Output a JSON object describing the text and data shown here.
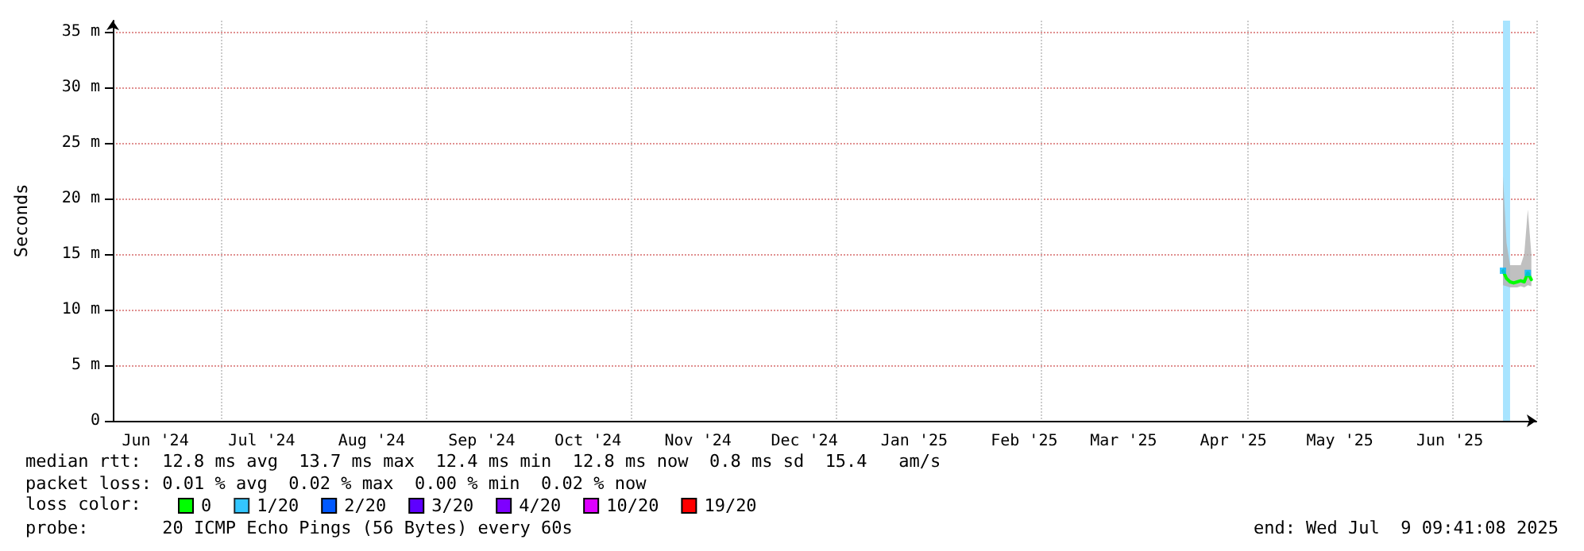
{
  "chart_data": {
    "type": "line",
    "ylabel": "Seconds",
    "legend_title": "loss color:",
    "x": [
      "2025-06-30",
      "2025-07-01",
      "2025-07-02",
      "2025-07-03",
      "2025-07-04",
      "2025-07-05",
      "2025-07-06",
      "2025-07-07",
      "2025-07-08"
    ],
    "series": [
      {
        "name": "0",
        "color": "#00ff00",
        "values": [
          13.5,
          12.8,
          12.5,
          12.4,
          12.5,
          12.6,
          12.5,
          13.3,
          12.7
        ],
        "lower": [
          12.2,
          12.1,
          12,
          12,
          12,
          12.1,
          12,
          12.2,
          12.1
        ],
        "upper": [
          22,
          16,
          14,
          14,
          14,
          14,
          15,
          19,
          15
        ]
      },
      {
        "name": "1/20",
        "type": "scatter",
        "marker": "square",
        "color": "#00b8ff",
        "values": [
          13.5,
          null,
          null,
          null,
          null,
          null,
          null,
          13.3,
          null
        ]
      },
      {
        "name": "2/20",
        "color": "#0059ff",
        "values": [
          null,
          null,
          null,
          null,
          null,
          null,
          null,
          null,
          null
        ]
      },
      {
        "name": "3/20",
        "color": "#5e00ff",
        "values": [
          null,
          null,
          null,
          null,
          null,
          null,
          null,
          null,
          null
        ]
      },
      {
        "name": "4/20",
        "color": "#7e00ff",
        "values": [
          null,
          null,
          null,
          null,
          null,
          null,
          null,
          null,
          null
        ]
      },
      {
        "name": "10/20",
        "color": "#dd00ff",
        "values": [
          null,
          null,
          null,
          null,
          null,
          null,
          null,
          null,
          null
        ]
      },
      {
        "name": "19/20",
        "color": "#ff0000",
        "values": [
          null,
          null,
          null,
          null,
          null,
          null,
          null,
          null,
          null
        ]
      }
    ],
    "xlim": [
      "2024-06-03",
      "2025-07-09T09:41"
    ],
    "xticks": [
      {
        "value": "2024-06-15",
        "label": "Jun '24"
      },
      {
        "value": "2024-07-15",
        "label": "Jul '24"
      },
      {
        "value": "2024-08-15",
        "label": "Aug '24"
      },
      {
        "value": "2024-09-15",
        "label": "Sep '24"
      },
      {
        "value": "2024-10-15",
        "label": "Oct '24"
      },
      {
        "value": "2024-11-15",
        "label": "Nov '24"
      },
      {
        "value": "2024-12-15",
        "label": "Dec '24"
      },
      {
        "value": "2025-01-15",
        "label": "Jan '25"
      },
      {
        "value": "2025-02-15",
        "label": "Feb '25"
      },
      {
        "value": "2025-03-15",
        "label": "Mar '25"
      },
      {
        "value": "2025-04-15",
        "label": "Apr '25"
      },
      {
        "value": "2025-05-15",
        "label": "May '25"
      },
      {
        "value": "2025-06-15",
        "label": "Jun '25"
      }
    ],
    "ylim": [
      0,
      36
    ],
    "yticks": [
      0,
      {
        "value": 5,
        "label": "5 m"
      },
      {
        "value": 10,
        "label": "10 m"
      },
      {
        "value": 15,
        "label": "15 m"
      },
      {
        "value": 20,
        "label": "20 m"
      },
      {
        "value": 25,
        "label": "25 m"
      },
      {
        "value": 30,
        "label": "30 m"
      },
      {
        "value": 35,
        "label": "35 m"
      }
    ],
    "bands": [
      {
        "axis": "x",
        "from": "2025-06-30",
        "to": "2025-07-02",
        "color": "#a8e4ff"
      }
    ],
    "grid": true,
    "legend": "bottom",
    "line_style": "solid",
    "marker": "none",
    "annotations": [
      "median rtt:  12.8 ms avg  13.7 ms max  12.4 ms min  12.8 ms now  0.8 ms sd  15.4   am/s",
      "packet loss: 0.01 % avg  0.02 % max  0.00 % min  0.02 % now",
      "probe:       20 ICMP Echo Pings (56 Bytes) every 60s",
      "end: Wed Jul  9 09:41:08 2025"
    ]
  }
}
